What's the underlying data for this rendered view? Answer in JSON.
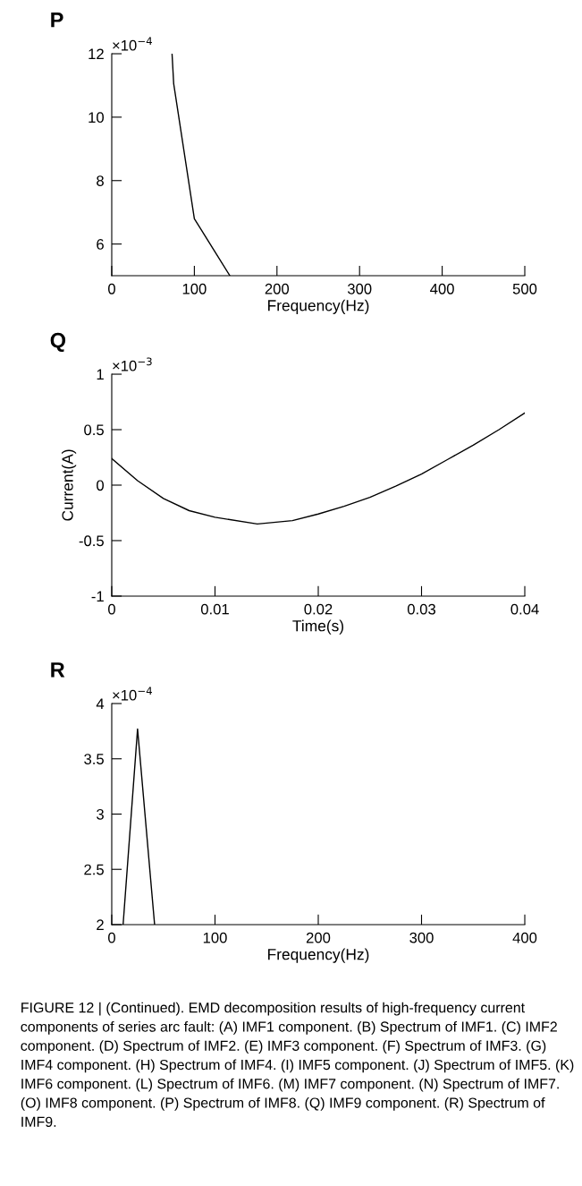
{
  "chart_data": [
    {
      "type": "line",
      "title": "P",
      "xlabel": "Frequency(Hz)",
      "annotations": [
        "×10$^{−4}$"
      ],
      "series": [
        {
          "color": "#000000",
          "x": [
            73,
            75,
            100,
            125,
            143
          ],
          "values": [
            12,
            11.05,
            6.8,
            5.75,
            5.0
          ]
        }
      ],
      "xlim": [
        0,
        500
      ],
      "xticks": [
        0,
        100,
        200,
        300,
        400,
        500
      ],
      "ylim": [
        5,
        12
      ],
      "yticks": [
        6,
        8,
        10,
        12
      ],
      "grid": false,
      "legend": false
    },
    {
      "type": "line",
      "title": "Q",
      "xlabel": "Time(s)",
      "ylabel": "Current(A)",
      "annotations": [
        "×10$^{−3}$"
      ],
      "series": [
        {
          "color": "#000000",
          "x": [
            0,
            0.0025,
            0.005,
            0.0075,
            0.01,
            0.0141,
            0.0175,
            0.02,
            0.0225,
            0.025,
            0.0275,
            0.03,
            0.0325,
            0.035,
            0.0375,
            0.04
          ],
          "values": [
            0.24,
            0.04,
            -0.12,
            -0.23,
            -0.29,
            -0.35,
            -0.32,
            -0.26,
            -0.19,
            -0.11,
            -0.01,
            0.1,
            0.23,
            0.36,
            0.5,
            0.65
          ]
        }
      ],
      "xlim": [
        0,
        0.04
      ],
      "xticks": [
        0,
        0.01,
        0.02,
        0.03,
        0.04
      ],
      "ylim": [
        -1,
        1
      ],
      "yticks": [
        -1,
        -0.5,
        0,
        0.5,
        1
      ],
      "grid": false,
      "legend": false
    },
    {
      "type": "line",
      "title": "R",
      "xlabel": "Frequency(Hz)",
      "annotations": [
        "×10$^{−4}$",
        "FIGURE 12 | (Continued). EMD decomposition results of high-frequency current components of series arc fault: (A) IMF1 component. (B) Spectrum of IMF1. (C) IMF2 component. (D) Spectrum of IMF2. (E) IMF3 component. (F) Spectrum of IMF3. (G) IMF4 component. (H) Spectrum of IMF4. (I) IMF5 component. (J) Spectrum of IMF5. (K) IMF6 component. (L) Spectrum of IMF6. (M) IMF7 component. (N) Spectrum of IMF7. (O) IMF8 component. (P) Spectrum of IMF8. (Q) IMF9 component. (R) Spectrum of IMF9."
      ],
      "series": [
        {
          "color": "#000000",
          "x": [
            11,
            25,
            41.5
          ],
          "values": [
            2,
            3.77,
            2
          ]
        }
      ],
      "xlim": [
        0,
        400
      ],
      "xticks": [
        0,
        100,
        200,
        300,
        400
      ],
      "ylim": [
        2,
        4
      ],
      "yticks": [
        2,
        2.5,
        3,
        3.5,
        4
      ],
      "grid": false,
      "legend": false
    }
  ]
}
